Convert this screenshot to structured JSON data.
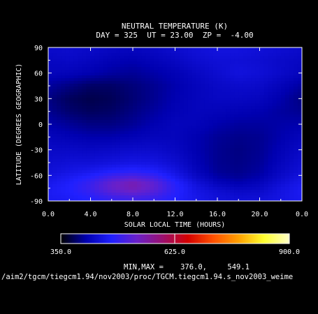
{
  "chart_data": {
    "type": "heatmap",
    "title": "NEUTRAL TEMPERATURE (K)",
    "subtitle": "DAY = 325  UT = 23.00  ZP =  -4.00",
    "xlabel": "SOLAR LOCAL TIME (HOURS)",
    "ylabel": "LATITUDE (DEGREES GEOGRAPHIC)",
    "xlim": [
      0,
      24
    ],
    "ylim": [
      -90,
      90
    ],
    "x_ticks": [
      "0.0",
      "4.0",
      "8.0",
      "12.0",
      "16.0",
      "20.0",
      "0.0"
    ],
    "y_ticks": [
      "90",
      "60",
      "30",
      "0",
      "-30",
      "-60",
      "-90"
    ],
    "colorbar": {
      "min": 350.0,
      "mid": 625.0,
      "max": 900.0,
      "labels": [
        "350.0",
        "625.0",
        "900.0"
      ]
    },
    "colormap": [
      "#000000",
      "#0000b0",
      "#2020ff",
      "#6a20c8",
      "#9a1070",
      "#d40000",
      "#ff5000",
      "#ffa000",
      "#ffff30",
      "#ffffc8"
    ],
    "minmax_label": "MIN,MAX =",
    "min_value": "376.0,",
    "max_value": "549.1",
    "source_path": "/aim2/tgcm/tiegcm1.94/nov2003/proc/TGCM.tiegcm1.94.s_nov2003_weime",
    "x": [
      0,
      2,
      4,
      6,
      8,
      10,
      12,
      14,
      16,
      18,
      20,
      22,
      24
    ],
    "y": [
      85,
      75,
      60,
      45,
      30,
      15,
      0,
      -15,
      -30,
      -45,
      -55,
      -62,
      -68,
      -74,
      -80,
      -87
    ],
    "values": [
      [
        430,
        432,
        428,
        422,
        420,
        424,
        432,
        440,
        445,
        445,
        440,
        435,
        430
      ],
      [
        425,
        428,
        422,
        415,
        412,
        418,
        425,
        435,
        440,
        440,
        436,
        430,
        425
      ],
      [
        420,
        418,
        412,
        405,
        402,
        408,
        415,
        425,
        435,
        445,
        440,
        430,
        420
      ],
      [
        405,
        395,
        385,
        385,
        392,
        400,
        410,
        420,
        428,
        432,
        430,
        418,
        405
      ],
      [
        395,
        382,
        376,
        380,
        390,
        400,
        412,
        420,
        425,
        425,
        422,
        410,
        395
      ],
      [
        400,
        388,
        382,
        385,
        395,
        405,
        415,
        420,
        418,
        415,
        412,
        405,
        400
      ],
      [
        410,
        402,
        395,
        395,
        402,
        412,
        420,
        418,
        410,
        405,
        405,
        408,
        410
      ],
      [
        420,
        415,
        410,
        410,
        415,
        420,
        420,
        412,
        402,
        398,
        400,
        410,
        420
      ],
      [
        428,
        428,
        425,
        428,
        432,
        432,
        425,
        412,
        400,
        395,
        400,
        415,
        428
      ],
      [
        435,
        440,
        440,
        445,
        450,
        448,
        435,
        415,
        400,
        396,
        402,
        420,
        435
      ],
      [
        440,
        450,
        458,
        470,
        478,
        470,
        448,
        420,
        402,
        398,
        405,
        425,
        440
      ],
      [
        448,
        460,
        475,
        500,
        512,
        495,
        460,
        428,
        408,
        402,
        410,
        430,
        448
      ],
      [
        455,
        468,
        490,
        525,
        545,
        520,
        475,
        440,
        418,
        410,
        418,
        438,
        455
      ],
      [
        460,
        472,
        495,
        530,
        549,
        525,
        480,
        448,
        428,
        420,
        425,
        445,
        460
      ],
      [
        462,
        470,
        488,
        515,
        530,
        512,
        478,
        452,
        438,
        430,
        432,
        448,
        462
      ],
      [
        460,
        465,
        475,
        490,
        498,
        490,
        472,
        455,
        442,
        438,
        440,
        450,
        460
      ]
    ]
  }
}
